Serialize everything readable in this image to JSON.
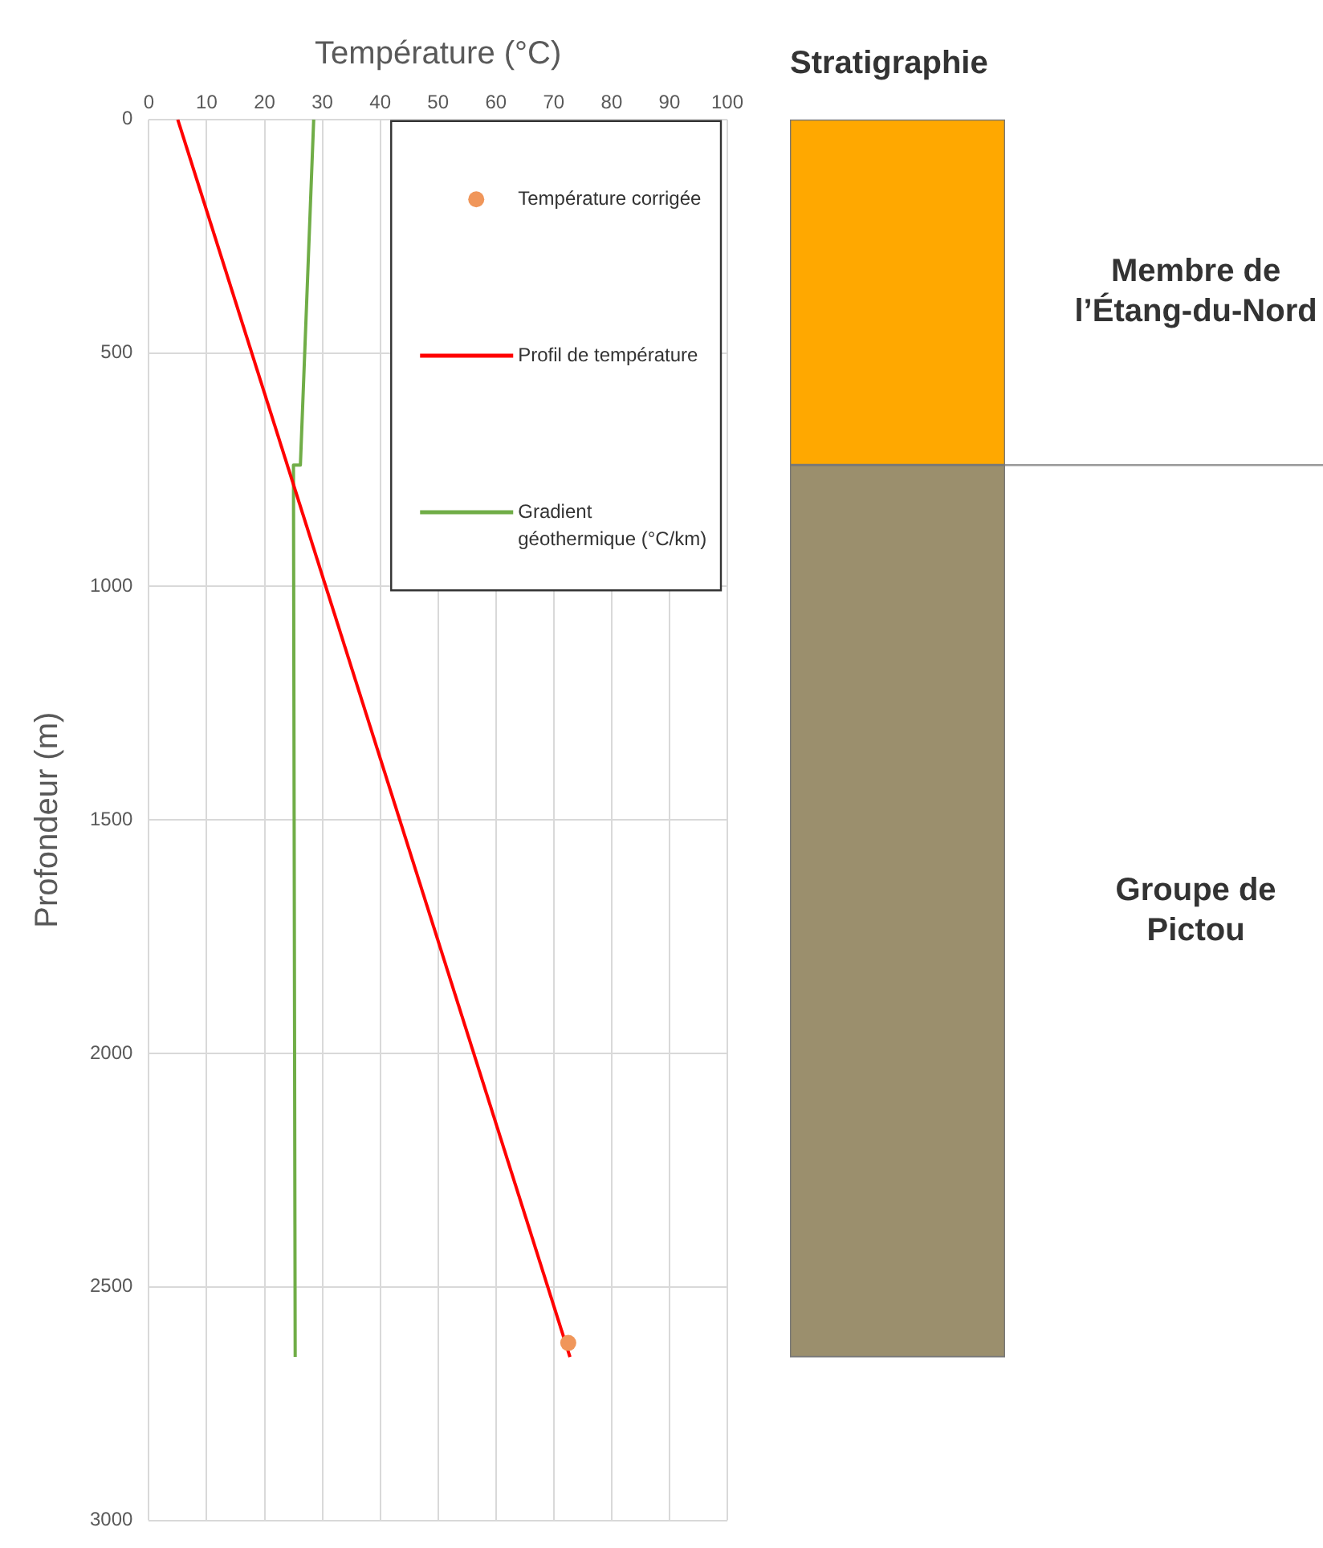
{
  "chart_data": [
    {
      "type": "line",
      "xlabel": "Température (°C)",
      "ylabel": "Profondeur (m)",
      "xlim": [
        0,
        100
      ],
      "xticks": [
        0,
        10,
        20,
        30,
        40,
        50,
        60,
        70,
        80,
        90,
        100
      ],
      "ylim": [
        3000,
        0
      ],
      "yticks": [
        0,
        500,
        1000,
        1500,
        2000,
        2500,
        3000
      ],
      "grid": true,
      "legend": "top right",
      "series": [
        {
          "name": "Température corrigée",
          "type": "scatter",
          "marker": "circle",
          "color": "#f0965a",
          "x": [
            72.5
          ],
          "values": [
            2620
          ]
        },
        {
          "name": "Profil de température",
          "type": "line",
          "marker": "none",
          "color": "#ff0000",
          "x": [
            5,
            72.8
          ],
          "values": [
            0,
            2650
          ]
        },
        {
          "name": "Gradient géothermique (°C/km)",
          "type": "line",
          "marker": "none",
          "color": "#70ad47",
          "x": [
            28.5,
            26.2,
            25,
            25.3
          ],
          "values": [
            0,
            740,
            740,
            2650
          ]
        }
      ]
    },
    {
      "type": "bar",
      "title": "Stratigraphie",
      "categories": [
        null
      ],
      "stacked": true,
      "ylim": [
        3000,
        0
      ],
      "tick_labels": false,
      "series": [
        {
          "name": "Membre de l’Étang-du-Nord",
          "color": "#ffa800",
          "values": [
            740
          ]
        },
        {
          "name": "Groupe de Pictou",
          "color": "#9b8f6d",
          "values": [
            1910
          ]
        }
      ],
      "ref_lines": [
        {
          "axis": "y",
          "value": 740,
          "color": "#999999"
        }
      ]
    }
  ]
}
